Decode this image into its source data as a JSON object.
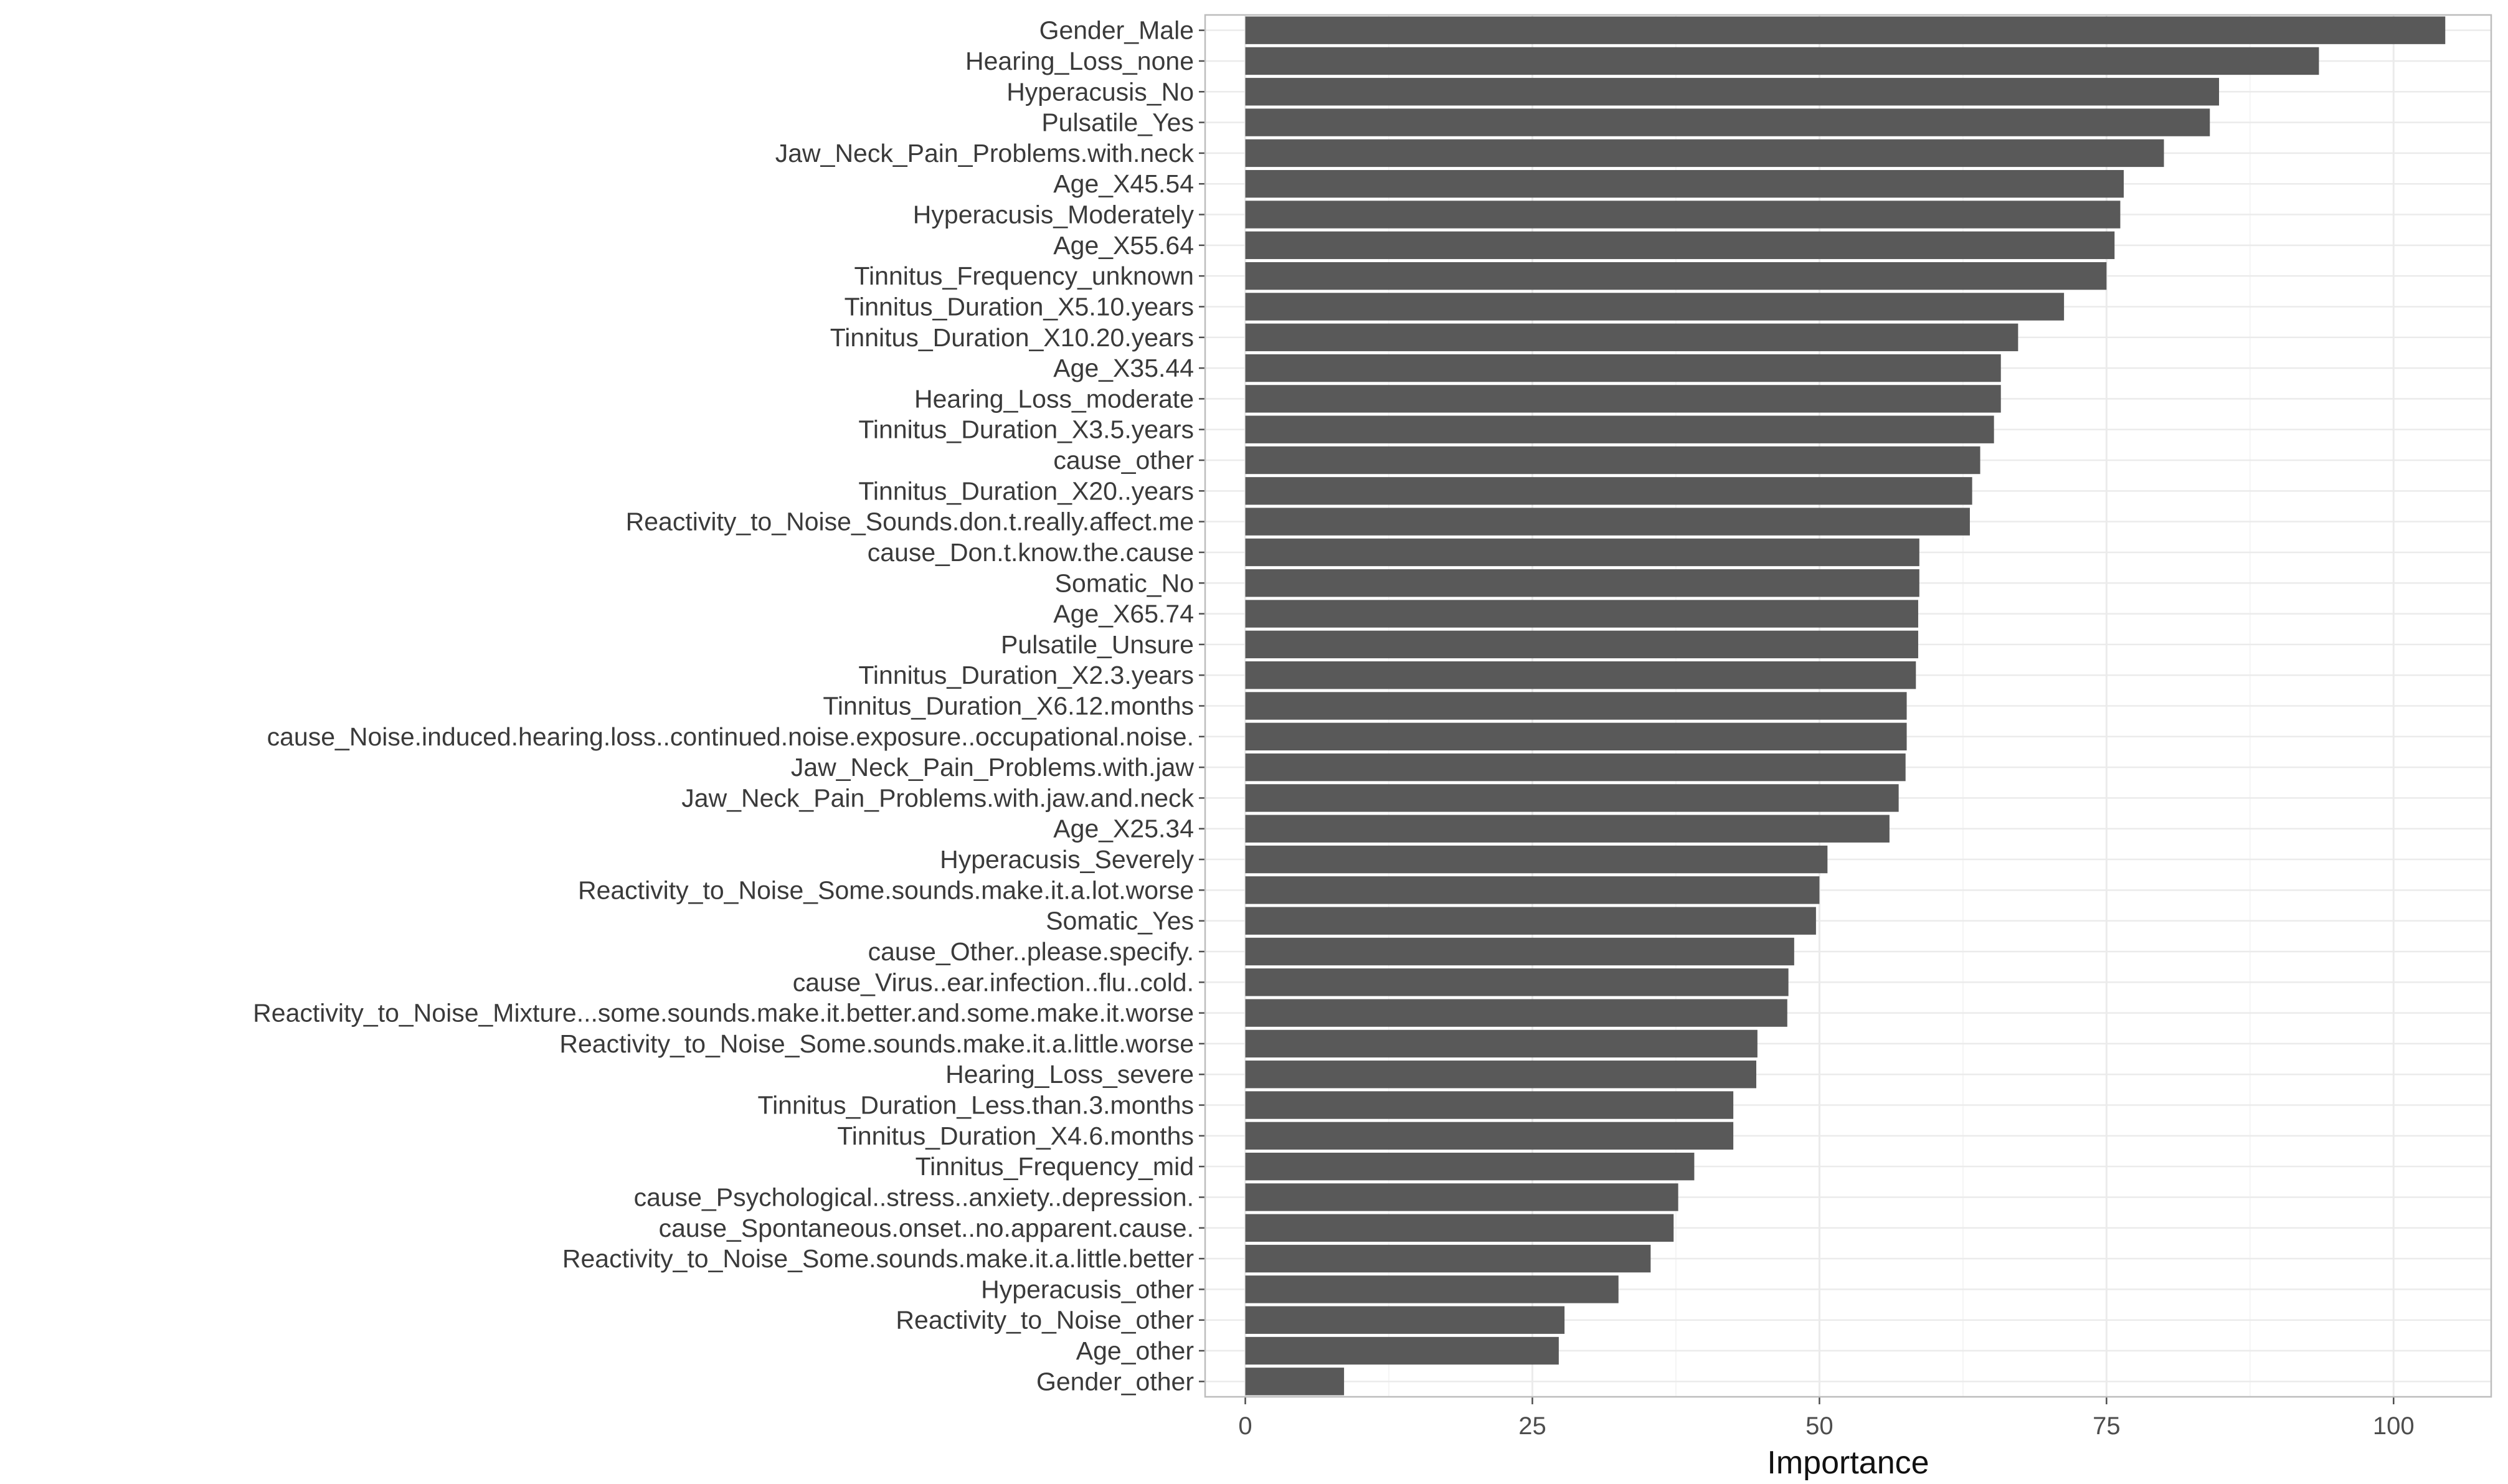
{
  "chart_data": {
    "type": "bar",
    "orientation": "horizontal",
    "title": "",
    "xlabel": "Importance",
    "ylabel": "",
    "xlim": [
      -3.5,
      108.5
    ],
    "x_ticks": [
      0,
      25,
      50,
      75,
      100
    ],
    "x_tick_labels": [
      "0",
      "25",
      "50",
      "75",
      "100"
    ],
    "grid": true,
    "legend": "none",
    "categories": [
      "Gender_Male",
      "Hearing_Loss_none",
      "Hyperacusis_No",
      "Pulsatile_Yes",
      "Jaw_Neck_Pain_Problems.with.neck",
      "Age_X45.54",
      "Hyperacusis_Moderately",
      "Age_X55.64",
      "Tinnitus_Frequency_unknown",
      "Tinnitus_Duration_X5.10.years",
      "Tinnitus_Duration_X10.20.years",
      "Age_X35.44",
      "Hearing_Loss_moderate",
      "Tinnitus_Duration_X3.5.years",
      "cause_other",
      "Tinnitus_Duration_X20..years",
      "Reactivity_to_Noise_Sounds.don.t.really.affect.me",
      "cause_Don.t.know.the.cause",
      "Somatic_No",
      "Age_X65.74",
      "Pulsatile_Unsure",
      "Tinnitus_Duration_X2.3.years",
      "Tinnitus_Duration_X6.12.months",
      "cause_Noise.induced.hearing.loss..continued.noise.exposure..occupational.noise.",
      "Jaw_Neck_Pain_Problems.with.jaw",
      "Jaw_Neck_Pain_Problems.with.jaw.and.neck",
      "Age_X25.34",
      "Hyperacusis_Severely",
      "Reactivity_to_Noise_Some.sounds.make.it.a.lot.worse",
      "Somatic_Yes",
      "cause_Other..please.specify.",
      "cause_Virus..ear.infection..flu..cold.",
      "Reactivity_to_Noise_Mixture...some.sounds.make.it.better.and.some.make.it.worse",
      "Reactivity_to_Noise_Some.sounds.make.it.a.little.worse",
      "Hearing_Loss_severe",
      "Tinnitus_Duration_Less.than.3.months",
      "Tinnitus_Duration_X4.6.months",
      "Tinnitus_Frequency_mid",
      "cause_Psychological..stress..anxiety..depression.",
      "cause_Spontaneous.onset..no.apparent.cause.",
      "Reactivity_to_Noise_Some.sounds.make.it.a.little.better",
      "Hyperacusis_other",
      "Reactivity_to_Noise_other",
      "Age_other",
      "Gender_other"
    ],
    "values": [
      104.5,
      93.5,
      84.8,
      84.0,
      80.0,
      76.5,
      76.2,
      75.7,
      75.0,
      71.3,
      67.3,
      65.8,
      65.8,
      65.2,
      64.0,
      63.3,
      63.1,
      58.7,
      58.7,
      58.6,
      58.6,
      58.4,
      57.6,
      57.6,
      57.5,
      56.9,
      56.1,
      50.7,
      50.0,
      49.7,
      47.8,
      47.3,
      47.2,
      44.6,
      44.5,
      42.5,
      42.5,
      39.1,
      37.7,
      37.3,
      35.3,
      32.5,
      27.8,
      27.3,
      8.6
    ]
  },
  "colors": {
    "bar": "#595959",
    "grid_major": "#ebebeb",
    "grid_minor": "#f5f5f5",
    "panel_border": "#bdbdbd",
    "tick": "#4d4d4d"
  }
}
